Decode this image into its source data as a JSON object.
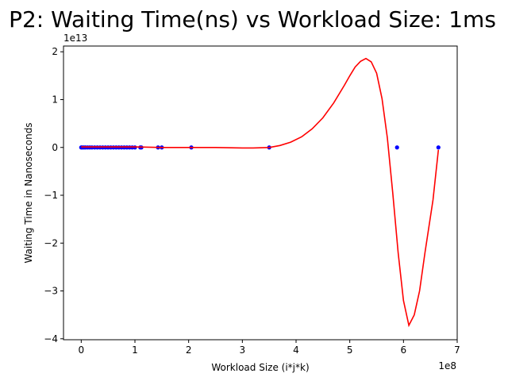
{
  "chart_data": {
    "type": "scatter",
    "title": "P2: Waiting Time(ns) vs Workload Size: 1ms",
    "xlabel": "Workload Size (i*j*k)",
    "ylabel": "Waiting Time in Nanoseconds",
    "x_offset_text": "1e8",
    "y_offset_text": "1e13",
    "xlim": [
      -0.33,
      7.0
    ],
    "ylim": [
      -4.02,
      2.12
    ],
    "xticks": [
      0,
      1,
      2,
      3,
      4,
      5,
      6,
      7
    ],
    "yticks": [
      -4,
      -3,
      -2,
      -1,
      0,
      1,
      2
    ],
    "x_tick_labels": [
      "0",
      "1",
      "2",
      "3",
      "4",
      "5",
      "6",
      "7"
    ],
    "y_tick_labels": [
      "−4",
      "−3",
      "−2",
      "−1",
      "0",
      "1",
      "2"
    ],
    "grid": false,
    "colors": {
      "points": "#0000ff",
      "fit_line": "#ff0000"
    },
    "series": [
      {
        "kind": "points",
        "x": [
          0,
          0.02,
          0.05,
          0.08,
          0.12,
          0.16,
          0.2,
          0.25,
          0.3,
          0.35,
          0.4,
          0.45,
          0.5,
          0.55,
          0.6,
          0.65,
          0.7,
          0.75,
          0.8,
          0.85,
          0.9,
          0.95,
          1.0,
          1.1,
          1.12,
          1.43,
          1.5,
          2.05,
          3.5,
          5.88,
          6.65
        ],
        "y": [
          0,
          0,
          0,
          0,
          0,
          0,
          0,
          0,
          0,
          0,
          0,
          0,
          0,
          0,
          0,
          0,
          0,
          0,
          0,
          0,
          0,
          0,
          0,
          0,
          0,
          0,
          0,
          0,
          0,
          0,
          0
        ]
      },
      {
        "kind": "fit_line",
        "x": [
          0,
          0.5,
          1.0,
          1.5,
          2.0,
          2.5,
          3.0,
          3.2,
          3.5,
          3.7,
          3.9,
          4.1,
          4.3,
          4.5,
          4.7,
          4.9,
          5.0,
          5.1,
          5.2,
          5.3,
          5.4,
          5.5,
          5.6,
          5.7,
          5.8,
          5.9,
          6.0,
          6.1,
          6.2,
          6.3,
          6.4,
          6.55,
          6.65
        ],
        "y": [
          0.01,
          0.01,
          0.01,
          0.0,
          0.0,
          0.0,
          -0.01,
          -0.01,
          0.0,
          0.04,
          0.11,
          0.22,
          0.39,
          0.62,
          0.93,
          1.3,
          1.5,
          1.68,
          1.8,
          1.86,
          1.79,
          1.55,
          1.02,
          0.2,
          -0.95,
          -2.2,
          -3.2,
          -3.72,
          -3.5,
          -3.0,
          -2.2,
          -1.1,
          -0.05
        ]
      }
    ]
  }
}
